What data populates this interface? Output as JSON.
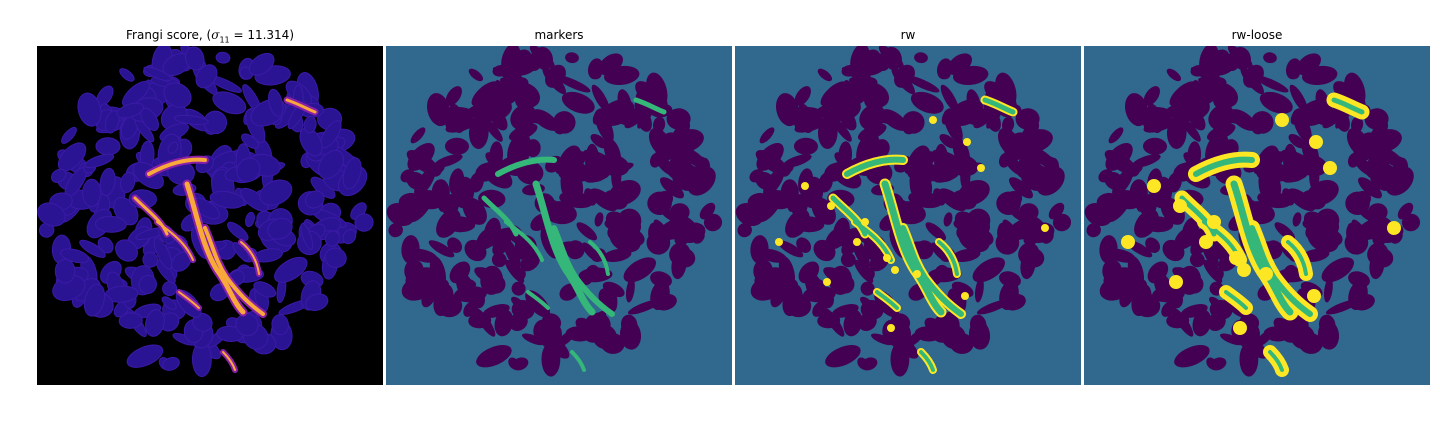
{
  "panels": [
    {
      "id": "frangi",
      "title_prefix": "Frangi score, (",
      "title_sym": "σ",
      "title_sub": "11",
      "title_suffix": " = 11.314)"
    },
    {
      "id": "markers",
      "title": "markers"
    },
    {
      "id": "rw",
      "title": "rw"
    },
    {
      "id": "rwloose",
      "title": "rw-loose"
    }
  ],
  "colors": {
    "frangi_bg": "#000000",
    "frangi_blob": "#2a1494",
    "frangi_mid": "#8a1fa8",
    "frangi_hot": "#f9a83a",
    "label_bg": "#31688e",
    "label_blob": "#440154",
    "marker_green": "#35b779",
    "seg_yellow": "#fde725"
  }
}
